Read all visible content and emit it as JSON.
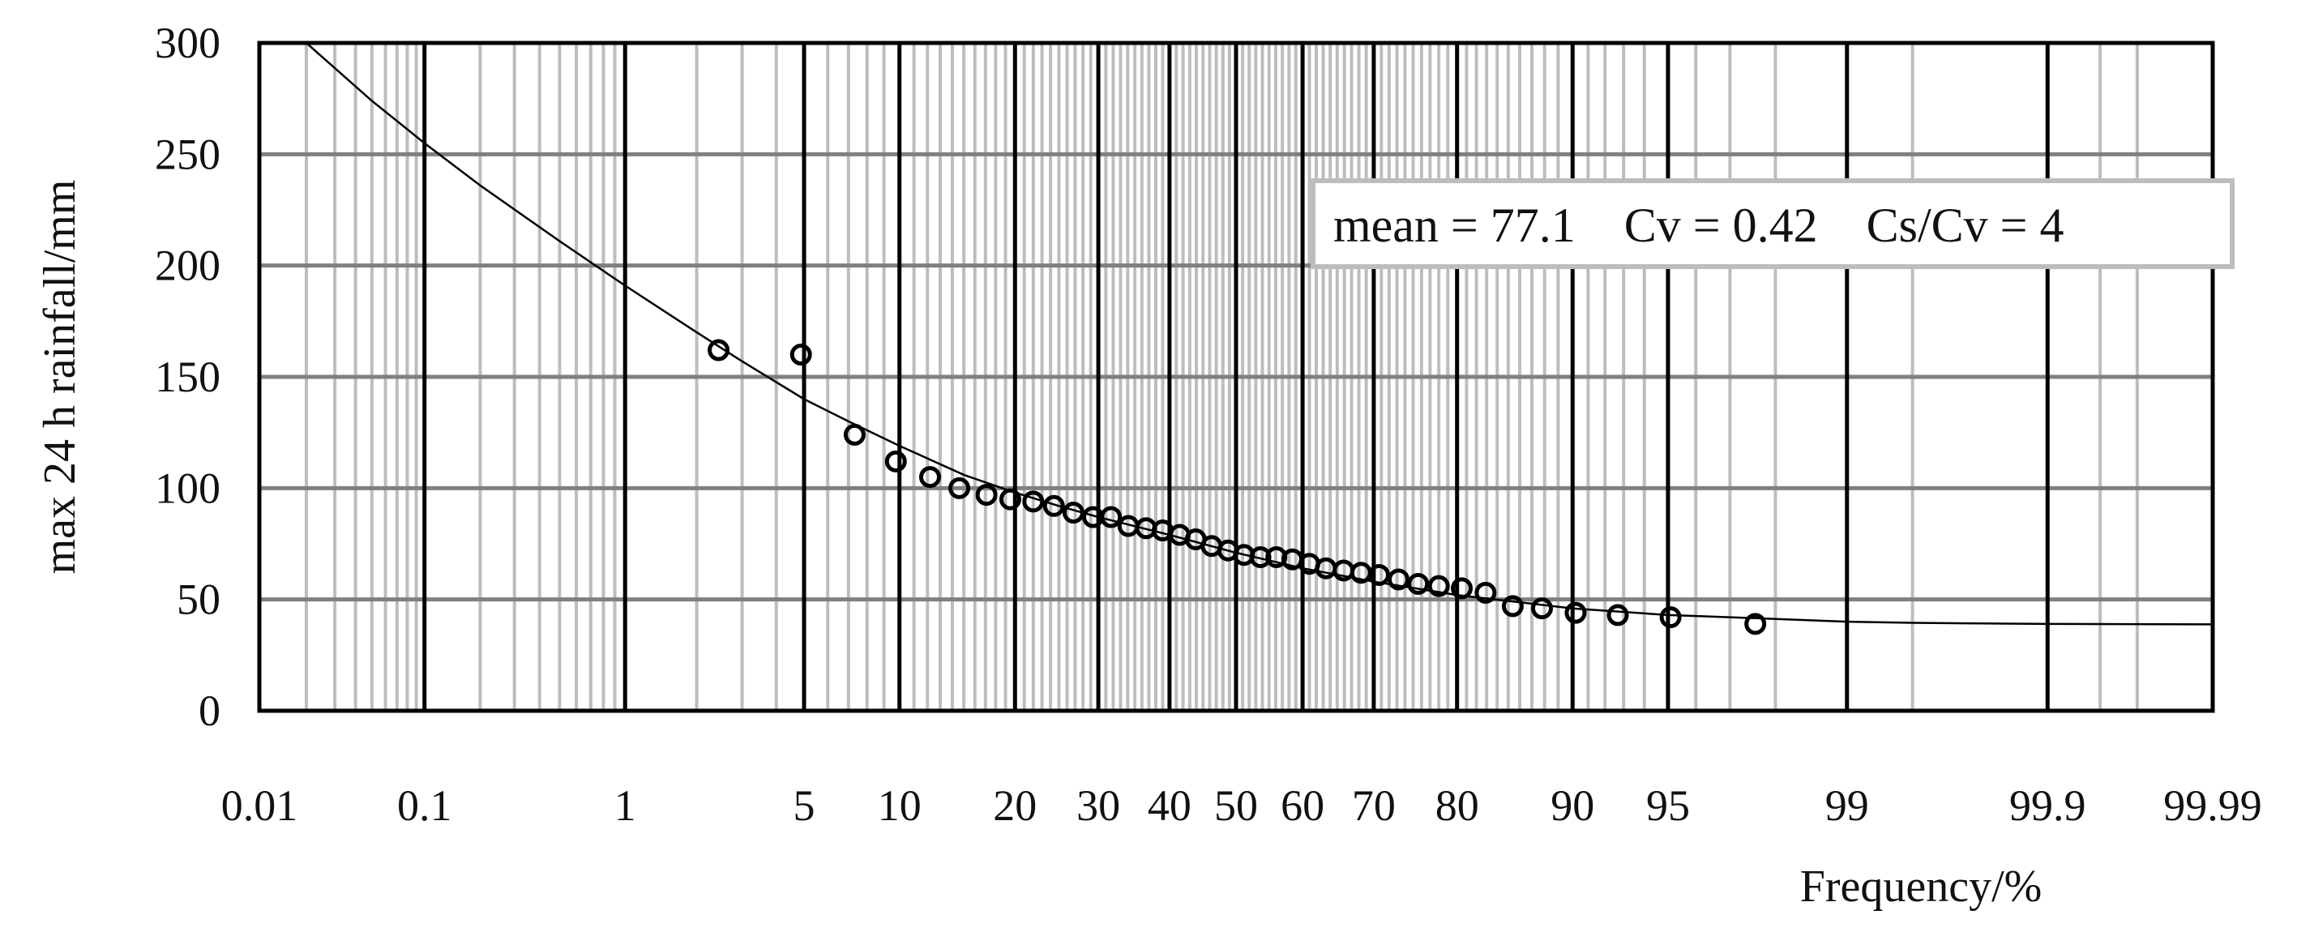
{
  "chart_data": {
    "type": "scatter",
    "title": "",
    "xlabel": "Frequency/%",
    "ylabel": "max 24 h rainfall/mm",
    "x_scale": "normal-probability",
    "x_ticks": [
      0.01,
      0.1,
      1,
      5,
      10,
      20,
      30,
      40,
      50,
      60,
      70,
      80,
      90,
      95,
      99,
      99.9,
      99.99
    ],
    "x_tick_labels": [
      "0.01",
      "0.1",
      "1",
      "5",
      "10",
      "20",
      "30",
      "40",
      "50",
      "60",
      "70",
      "80",
      "90",
      "95",
      "99",
      "99.9",
      "99.99"
    ],
    "ylim": [
      0,
      300
    ],
    "y_ticks": [
      0,
      50,
      100,
      150,
      200,
      250,
      300
    ],
    "y_tick_labels": [
      "0",
      "50",
      "100",
      "150",
      "200",
      "250",
      "300"
    ],
    "grid": true,
    "legend": "none",
    "annotation": "mean = 77.1    Cv = 0.42    Cs/Cv = 4",
    "series": [
      {
        "kind": "points",
        "marker": "open-circle",
        "x": [
          2.44,
          4.88,
          7.32,
          9.76,
          12.2,
          14.6,
          17.1,
          19.5,
          22.0,
          24.4,
          26.8,
          29.3,
          31.7,
          34.1,
          36.6,
          39.0,
          41.5,
          43.9,
          46.3,
          48.8,
          51.2,
          53.7,
          56.1,
          58.5,
          61.0,
          63.4,
          65.9,
          68.3,
          70.7,
          73.2,
          75.6,
          78.0,
          80.5,
          82.9,
          85.4,
          87.8,
          90.2,
          92.7,
          95.1,
          97.6
        ],
        "y": [
          162,
          160,
          124,
          112,
          105,
          100,
          97,
          95,
          94,
          92,
          89,
          87,
          87,
          83,
          82,
          81,
          79,
          77,
          74,
          72,
          70,
          69,
          69,
          68,
          66,
          64,
          63,
          62,
          61,
          59,
          57,
          56,
          55,
          53,
          47,
          46,
          44,
          43,
          42,
          39
        ]
      },
      {
        "kind": "fitted-curve",
        "x": [
          0.02,
          0.05,
          0.1,
          0.2,
          0.5,
          1,
          2,
          3,
          5,
          7,
          10,
          15,
          20,
          25,
          30,
          40,
          50,
          60,
          70,
          80,
          90,
          95,
          97,
          99,
          99.5,
          99.9,
          99.99
        ],
        "y": [
          300,
          274,
          255,
          236,
          211,
          191,
          170,
          157,
          140,
          130,
          119,
          106,
          98,
          92,
          87,
          79,
          71,
          64,
          58,
          52,
          46,
          43,
          42,
          40,
          39.5,
          39,
          38.8
        ]
      }
    ]
  }
}
